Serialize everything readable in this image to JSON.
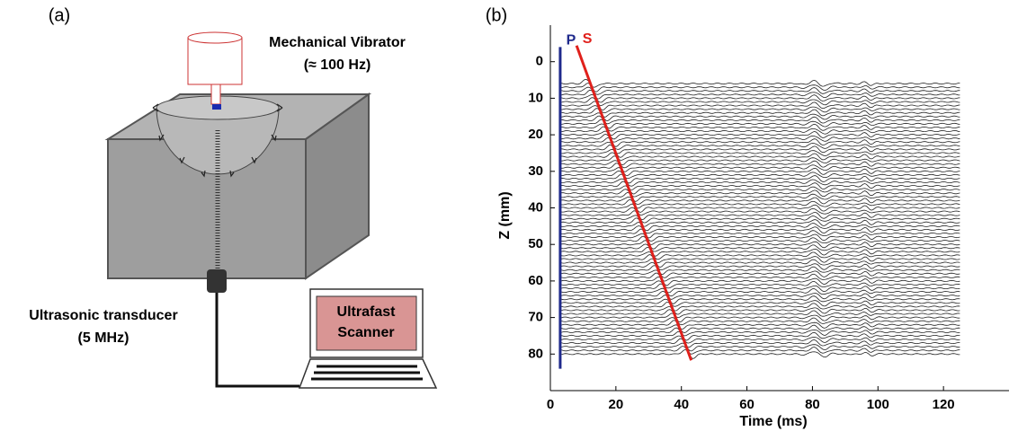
{
  "panel_a": {
    "label": "(a)",
    "vibrator": "Mechanical Vibrator",
    "frequency": "(≈ 100 Hz)",
    "transducer": "Ultrasonic transducer",
    "transducer_freq": "(5 MHz)",
    "scanner": [
      "Ultrafast",
      "Scanner"
    ]
  },
  "chart_data": {
    "type": "wiggle",
    "panel_label": "(b)",
    "xlabel": "Time (ms)",
    "ylabel": "Z (mm)",
    "xlim": [
      0,
      140
    ],
    "ylim": [
      -10,
      90
    ],
    "y_inverted": true,
    "xticks": [
      0,
      20,
      40,
      60,
      80,
      100,
      120
    ],
    "yticks": [
      0,
      10,
      20,
      30,
      40,
      50,
      60,
      70,
      80
    ],
    "lines": [
      {
        "name": "P",
        "color": "#1f2a8c",
        "x": [
          3,
          3
        ],
        "y": [
          -4,
          84
        ]
      },
      {
        "name": "S",
        "color": "#e0201b",
        "x": [
          8,
          43
        ],
        "y": [
          -4.4,
          81.7
        ]
      }
    ],
    "traces": {
      "color": "#222",
      "t_range": [
        3,
        125
      ],
      "z": [
        6,
        7,
        8,
        9,
        10,
        11,
        12,
        13,
        14,
        15,
        16,
        17,
        18,
        19,
        20,
        21,
        22,
        23,
        24,
        25,
        26,
        27,
        28,
        29,
        30,
        31,
        32,
        33,
        34,
        35,
        36,
        37,
        38,
        39,
        40,
        41,
        42,
        43,
        44,
        45,
        46,
        47,
        48,
        49,
        50,
        51,
        52,
        53,
        54,
        55,
        56,
        57,
        58,
        59,
        60,
        61,
        62,
        63,
        64,
        65,
        66,
        67,
        68,
        69,
        70,
        71,
        72,
        73,
        74,
        75,
        76,
        77,
        78,
        79,
        80
      ]
    }
  }
}
